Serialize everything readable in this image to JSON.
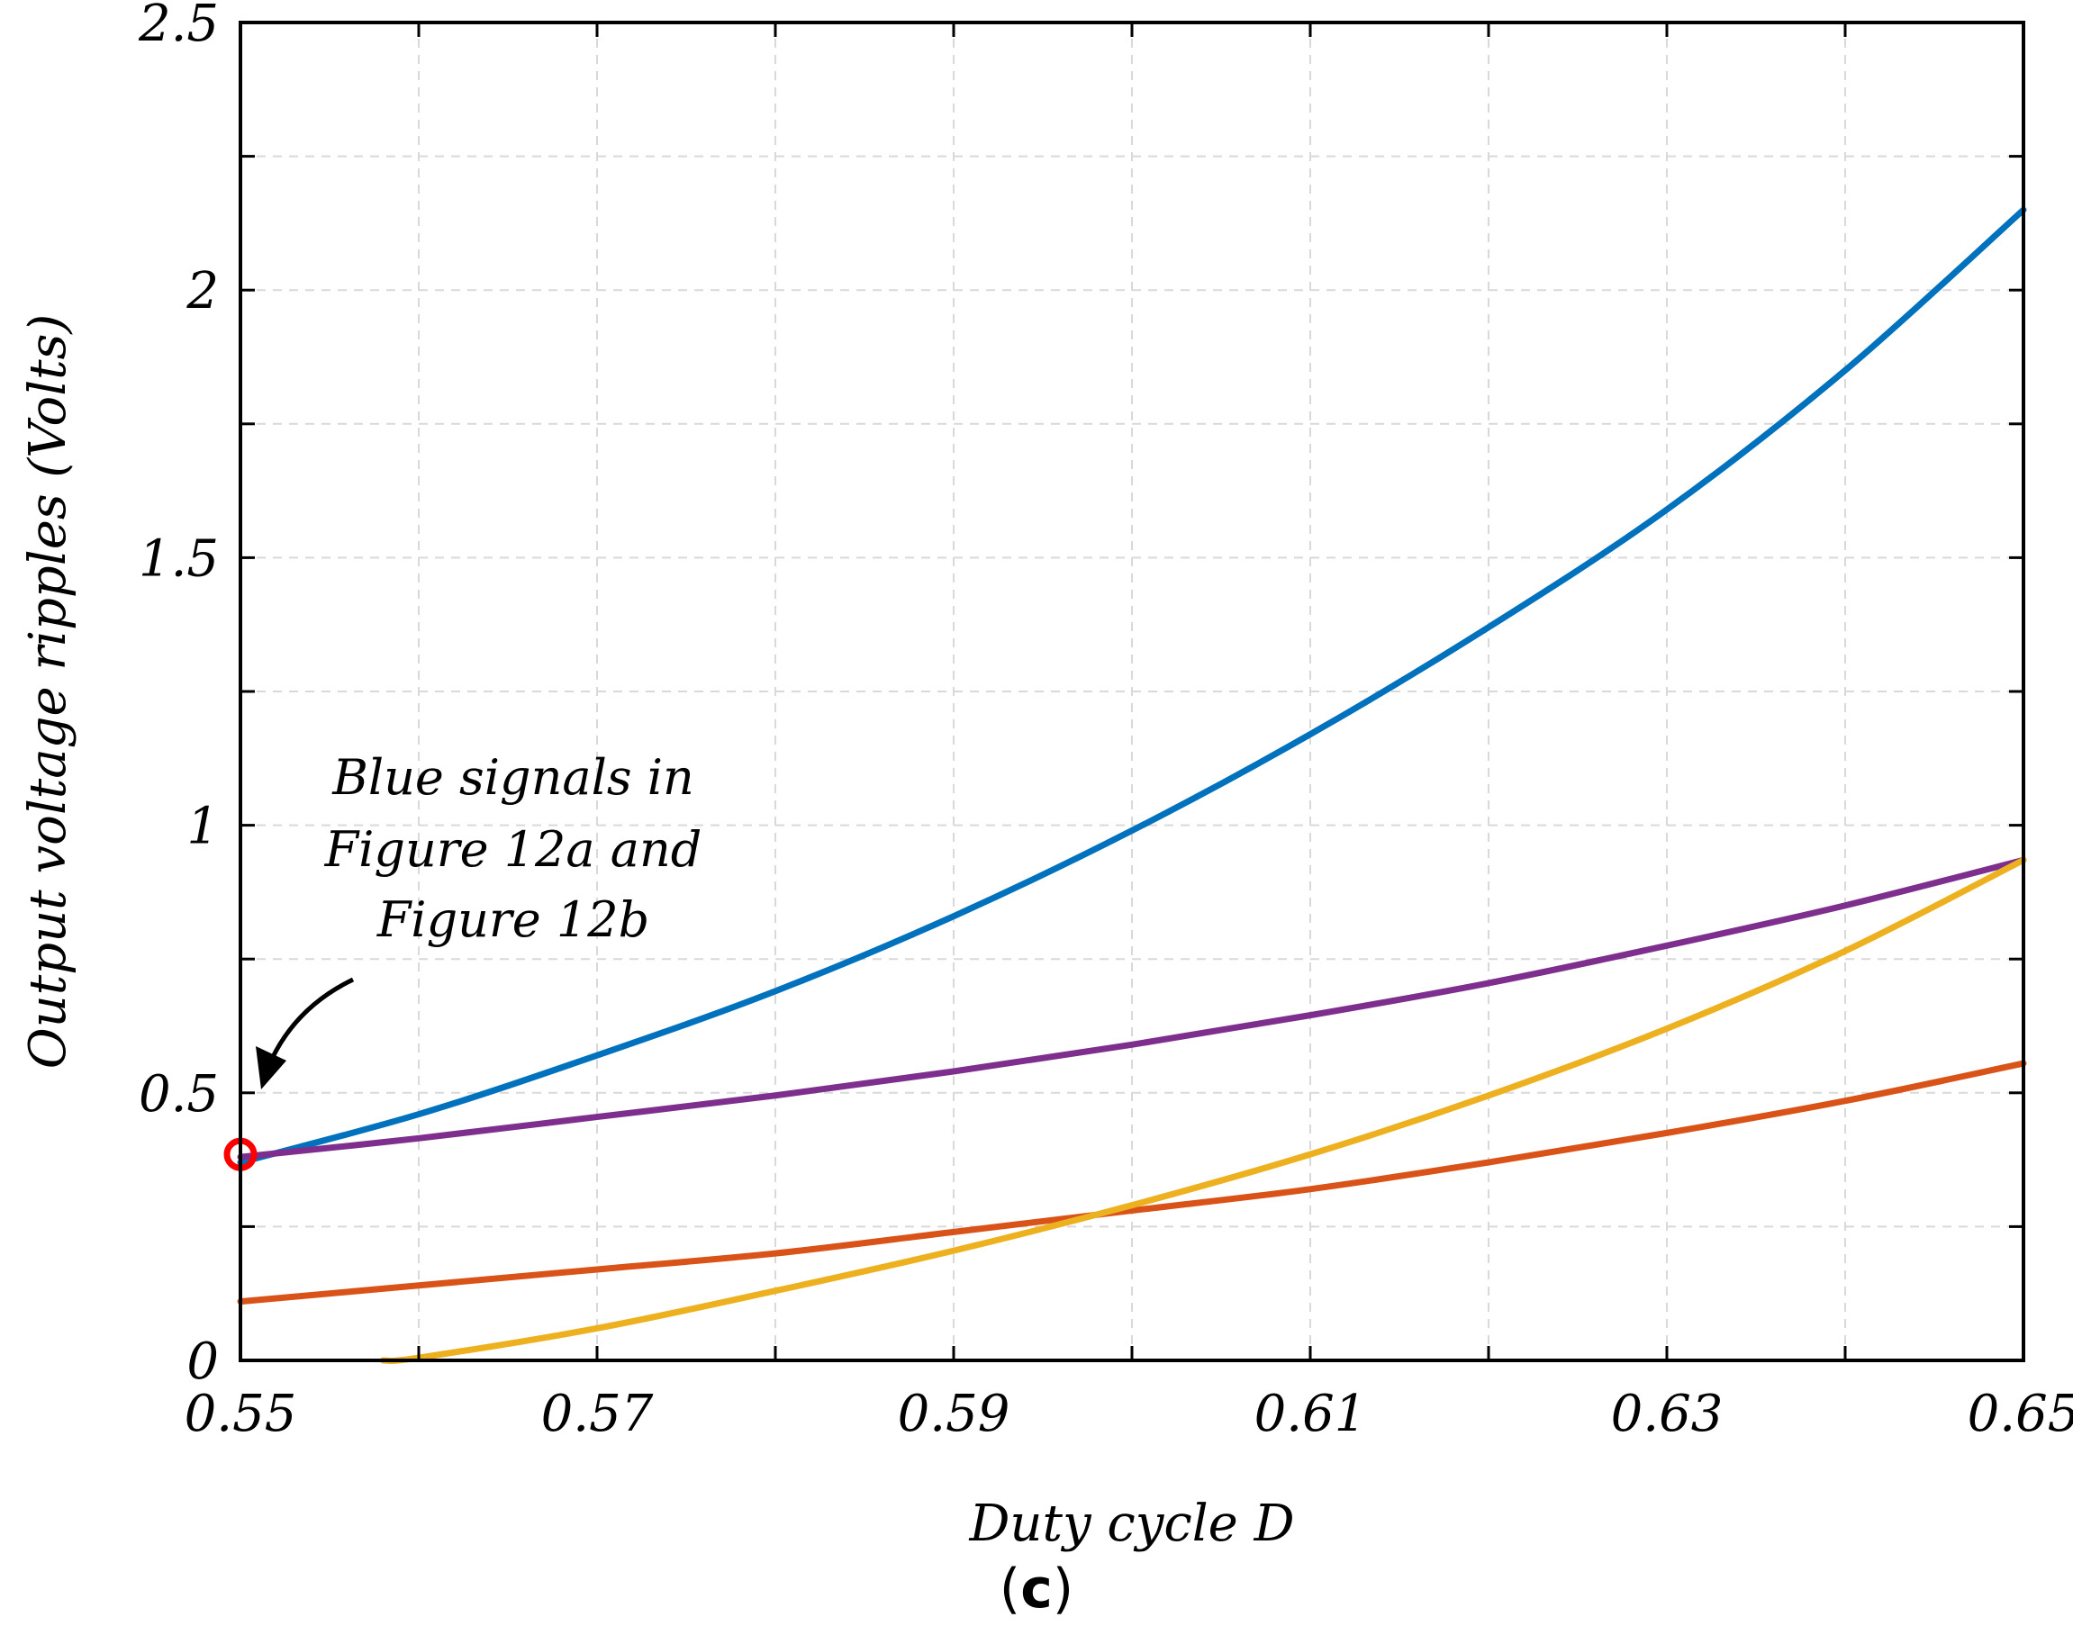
{
  "chart_data": {
    "type": "line",
    "title": "",
    "xlabel": "Duty cycle D",
    "ylabel": "Output voltage ripples (Volts)",
    "xlim": [
      0.55,
      0.65
    ],
    "ylim": [
      0,
      2.5
    ],
    "x_ticks": [
      "0.55",
      "0.57",
      "0.59",
      "0.61",
      "0.63",
      "0.65"
    ],
    "x_tick_values": [
      0.55,
      0.57,
      0.59,
      0.61,
      0.63,
      0.65
    ],
    "y_ticks": [
      "0",
      "0.5",
      "1",
      "1.5",
      "2",
      "2.5"
    ],
    "y_tick_values": [
      0,
      0.5,
      1,
      1.5,
      2,
      2.5
    ],
    "grid": true,
    "x": [
      0.55,
      0.56,
      0.57,
      0.58,
      0.59,
      0.6,
      0.61,
      0.62,
      0.63,
      0.64,
      0.65
    ],
    "series": [
      {
        "name": "blue",
        "color": "#0072BD",
        "values": [
          0.37,
          0.46,
          0.57,
          0.69,
          0.83,
          0.99,
          1.17,
          1.37,
          1.59,
          1.85,
          2.15
        ]
      },
      {
        "name": "purple",
        "color": "#7E2F8E",
        "values": [
          0.38,
          0.415,
          0.455,
          0.495,
          0.54,
          0.59,
          0.645,
          0.705,
          0.775,
          0.85,
          0.935
        ]
      },
      {
        "name": "orange",
        "color": "#D95319",
        "values": [
          0.11,
          0.14,
          0.17,
          0.2,
          0.24,
          0.28,
          0.32,
          0.37,
          0.425,
          0.485,
          0.555
        ]
      },
      {
        "name": "yellow",
        "color": "#EDB120",
        "x": [
          0.558,
          0.56,
          0.57,
          0.58,
          0.59,
          0.6,
          0.61,
          0.62,
          0.63,
          0.64,
          0.65
        ],
        "values": [
          0.0,
          0.005,
          0.06,
          0.13,
          0.205,
          0.29,
          0.385,
          0.495,
          0.62,
          0.765,
          0.935
        ]
      }
    ],
    "marker": {
      "x": 0.55,
      "y": 0.385,
      "color": "#FF0000"
    },
    "annotation": {
      "lines": [
        "Blue signals in",
        "Figure 12a and",
        "Figure 12b"
      ]
    }
  },
  "caption": {
    "open": "(",
    "letter": "c",
    "close": ")"
  }
}
